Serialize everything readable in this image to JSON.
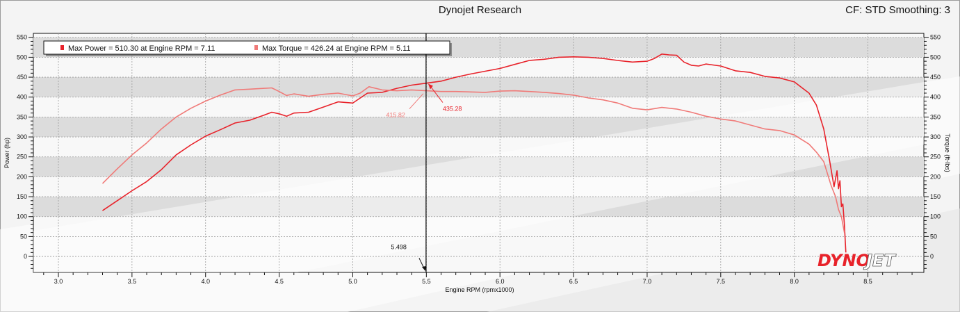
{
  "header": {
    "title": "Dynojet Research",
    "settings": "CF: STD Smoothing: 3"
  },
  "logo": {
    "text_left": "DYNO",
    "text_right": "JET"
  },
  "colors": {
    "power": "#e8222a",
    "torque": "#f07a78",
    "cursor": "#000000",
    "grid": "#9a9a9a",
    "band": "#dcdcdc"
  },
  "chart_data": {
    "type": "line",
    "title": "Dynojet Research",
    "xlabel": "Engine RPM (rpmx1000)",
    "ylabel_left": "Power (hp)",
    "ylabel_right": "Torque (ft-lbs)",
    "xlim": [
      2.83,
      8.88
    ],
    "ylim": [
      -40,
      560
    ],
    "xticks": [
      3.0,
      3.5,
      4.0,
      4.5,
      5.0,
      5.5,
      6.0,
      6.5,
      7.0,
      7.5,
      8.0,
      8.5
    ],
    "xtick_labels": [
      "3.0",
      "3.5",
      "4.0",
      "4.5",
      "5.0",
      "5.5",
      "6.0",
      "6.5",
      "7.0",
      "7.5",
      "8.0",
      "8.5"
    ],
    "yticks": [
      0,
      50,
      100,
      150,
      200,
      250,
      300,
      350,
      400,
      450,
      500,
      550
    ],
    "ytick_labels": [
      "0",
      "50",
      "100",
      "150",
      "200",
      "250",
      "300",
      "350",
      "400",
      "450",
      "500",
      "550"
    ],
    "grid": true,
    "legend": {
      "position": "top-left",
      "entries": [
        "Max Power = 510.30 at Engine RPM = 7.11",
        "Max Torque = 426.24 at Engine RPM = 5.11"
      ]
    },
    "cursor": {
      "x": 5.498,
      "label": "5.498",
      "power_value": 435.28,
      "power_label": "435.28",
      "torque_value": 415.82,
      "torque_label": "415.82"
    },
    "series": [
      {
        "name": "Power",
        "points": [
          [
            3.3,
            115
          ],
          [
            3.4,
            140
          ],
          [
            3.5,
            165
          ],
          [
            3.6,
            188
          ],
          [
            3.7,
            218
          ],
          [
            3.8,
            255
          ],
          [
            3.9,
            280
          ],
          [
            4.0,
            302
          ],
          [
            4.1,
            318
          ],
          [
            4.2,
            335
          ],
          [
            4.3,
            342
          ],
          [
            4.4,
            355
          ],
          [
            4.45,
            362
          ],
          [
            4.5,
            358
          ],
          [
            4.55,
            352
          ],
          [
            4.6,
            360
          ],
          [
            4.7,
            362
          ],
          [
            4.8,
            375
          ],
          [
            4.9,
            388
          ],
          [
            5.0,
            385
          ],
          [
            5.1,
            410
          ],
          [
            5.2,
            412
          ],
          [
            5.3,
            422
          ],
          [
            5.4,
            430
          ],
          [
            5.5,
            435
          ],
          [
            5.6,
            440
          ],
          [
            5.7,
            450
          ],
          [
            5.8,
            458
          ],
          [
            5.9,
            465
          ],
          [
            6.0,
            472
          ],
          [
            6.1,
            482
          ],
          [
            6.2,
            492
          ],
          [
            6.3,
            495
          ],
          [
            6.4,
            500
          ],
          [
            6.5,
            501
          ],
          [
            6.6,
            500
          ],
          [
            6.7,
            497
          ],
          [
            6.8,
            492
          ],
          [
            6.9,
            488
          ],
          [
            7.0,
            490
          ],
          [
            7.05,
            497
          ],
          [
            7.1,
            508
          ],
          [
            7.15,
            506
          ],
          [
            7.2,
            505
          ],
          [
            7.25,
            488
          ],
          [
            7.3,
            480
          ],
          [
            7.35,
            478
          ],
          [
            7.4,
            483
          ],
          [
            7.5,
            478
          ],
          [
            7.6,
            466
          ],
          [
            7.7,
            462
          ],
          [
            7.8,
            452
          ],
          [
            7.9,
            448
          ],
          [
            8.0,
            438
          ],
          [
            8.1,
            410
          ],
          [
            8.15,
            380
          ],
          [
            8.2,
            320
          ],
          [
            8.24,
            240
          ],
          [
            8.27,
            175
          ],
          [
            8.29,
            215
          ],
          [
            8.3,
            170
          ],
          [
            8.31,
            190
          ],
          [
            8.32,
            125
          ],
          [
            8.33,
            132
          ],
          [
            8.34,
            80
          ],
          [
            8.35,
            10
          ]
        ]
      },
      {
        "name": "Torque",
        "points": [
          [
            3.3,
            183
          ],
          [
            3.4,
            220
          ],
          [
            3.5,
            255
          ],
          [
            3.6,
            285
          ],
          [
            3.7,
            320
          ],
          [
            3.8,
            350
          ],
          [
            3.9,
            372
          ],
          [
            4.0,
            390
          ],
          [
            4.1,
            405
          ],
          [
            4.2,
            418
          ],
          [
            4.3,
            420
          ],
          [
            4.4,
            422
          ],
          [
            4.45,
            423
          ],
          [
            4.5,
            414
          ],
          [
            4.55,
            404
          ],
          [
            4.6,
            408
          ],
          [
            4.7,
            402
          ],
          [
            4.8,
            407
          ],
          [
            4.9,
            410
          ],
          [
            5.0,
            403
          ],
          [
            5.05,
            410
          ],
          [
            5.11,
            426
          ],
          [
            5.2,
            418
          ],
          [
            5.3,
            416
          ],
          [
            5.4,
            418
          ],
          [
            5.5,
            416
          ],
          [
            5.6,
            414
          ],
          [
            5.7,
            414
          ],
          [
            5.8,
            413
          ],
          [
            5.9,
            412
          ],
          [
            6.0,
            415
          ],
          [
            6.1,
            416
          ],
          [
            6.2,
            414
          ],
          [
            6.3,
            412
          ],
          [
            6.4,
            409
          ],
          [
            6.5,
            405
          ],
          [
            6.6,
            398
          ],
          [
            6.7,
            393
          ],
          [
            6.8,
            385
          ],
          [
            6.9,
            372
          ],
          [
            7.0,
            368
          ],
          [
            7.1,
            374
          ],
          [
            7.2,
            370
          ],
          [
            7.3,
            362
          ],
          [
            7.4,
            352
          ],
          [
            7.5,
            345
          ],
          [
            7.6,
            340
          ],
          [
            7.7,
            330
          ],
          [
            7.8,
            320
          ],
          [
            7.9,
            316
          ],
          [
            8.0,
            305
          ],
          [
            8.1,
            282
          ],
          [
            8.15,
            262
          ],
          [
            8.2,
            238
          ],
          [
            8.25,
            178
          ],
          [
            8.28,
            150
          ],
          [
            8.3,
            118
          ],
          [
            8.32,
            100
          ],
          [
            8.34,
            60
          ]
        ]
      }
    ]
  }
}
